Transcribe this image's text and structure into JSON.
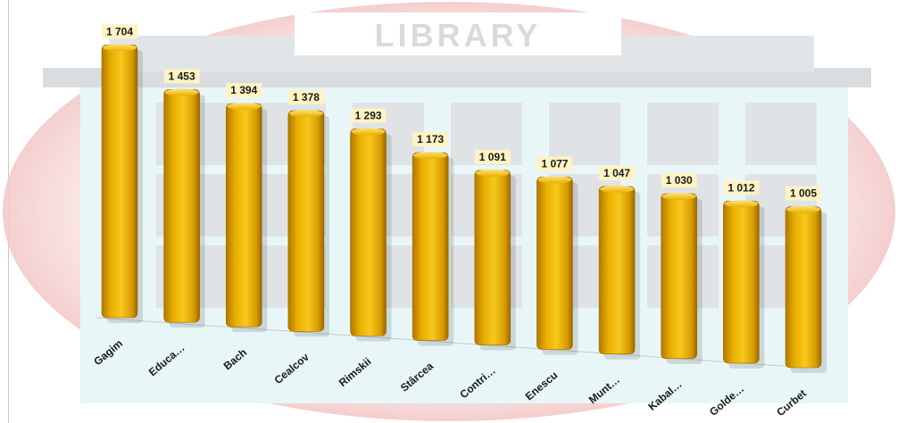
{
  "watermark": {
    "sign_text": "LIBRARY",
    "accent_color": "#f3c9c9"
  },
  "chart_data": {
    "type": "bar",
    "title": "",
    "xlabel": "",
    "ylabel": "",
    "ylim": [
      0,
      1800
    ],
    "grid": false,
    "categories": [
      "Gagim",
      "Educa…",
      "Bach",
      "Cealcov",
      "Rimskii",
      "Stârcea",
      "Contri…",
      "Enescu",
      "Munt…",
      "Kabal…",
      "Golde…",
      "Curbet"
    ],
    "series": [
      {
        "values": [
          1704,
          1453,
          1394,
          1378,
          1293,
          1173,
          1091,
          1077,
          1047,
          1030,
          1012,
          1005
        ],
        "value_labels": [
          "1 704",
          "1 453",
          "1 394",
          "1 378",
          "1 293",
          "1 173",
          "1 091",
          "1 077",
          "1 047",
          "1 030",
          "1 012",
          "1 005"
        ],
        "color": "#e3a800"
      }
    ],
    "label_background": "#fff3c4"
  }
}
